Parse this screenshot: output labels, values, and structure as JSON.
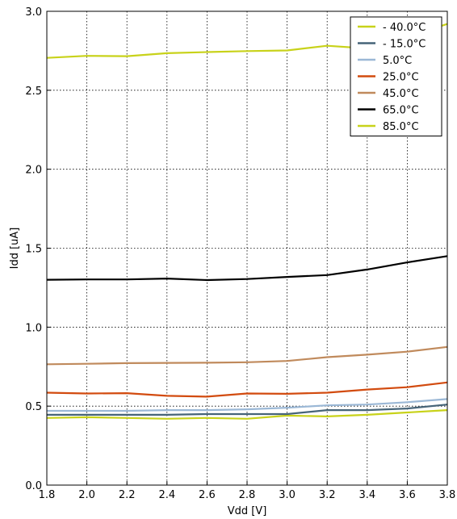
{
  "chart_data": {
    "type": "line",
    "title": "",
    "xlabel": "Vdd [V]",
    "ylabel": "Idd [uA]",
    "xlim": [
      1.8,
      3.8
    ],
    "ylim": [
      0.0,
      3.0
    ],
    "x_ticks": [
      "1.8",
      "2.0",
      "2.2",
      "2.4",
      "2.6",
      "2.8",
      "3.0",
      "3.2",
      "3.4",
      "3.6",
      "3.8"
    ],
    "y_ticks": [
      "0.0",
      "0.5",
      "1.0",
      "1.5",
      "2.0",
      "2.5",
      "3.0"
    ],
    "grid": true,
    "legend_position": "top-right",
    "x": [
      1.8,
      2.0,
      2.2,
      2.4,
      2.6,
      2.8,
      3.0,
      3.2,
      3.4,
      3.6,
      3.8
    ],
    "series": [
      {
        "name": "- 40.0°C",
        "color": "#c8d21a",
        "values": [
          0.425,
          0.43,
          0.425,
          0.42,
          0.425,
          0.42,
          0.44,
          0.435,
          0.445,
          0.46,
          0.475
        ]
      },
      {
        "name": "- 15.0°C",
        "color": "#466478",
        "values": [
          0.445,
          0.445,
          0.445,
          0.445,
          0.45,
          0.45,
          0.45,
          0.475,
          0.475,
          0.485,
          0.51
        ]
      },
      {
        "name": "5.0°C",
        "color": "#9bb8d6",
        "values": [
          0.47,
          0.47,
          0.47,
          0.475,
          0.475,
          0.48,
          0.49,
          0.505,
          0.51,
          0.525,
          0.545
        ]
      },
      {
        "name": "25.0°C",
        "color": "#d24b0f",
        "values": [
          0.585,
          0.58,
          0.582,
          0.565,
          0.56,
          0.58,
          0.578,
          0.585,
          0.605,
          0.62,
          0.65
        ]
      },
      {
        "name": "45.0°C",
        "color": "#c08a5c",
        "values": [
          0.765,
          0.768,
          0.772,
          0.774,
          0.775,
          0.778,
          0.786,
          0.81,
          0.826,
          0.845,
          0.875
        ]
      },
      {
        "name": "65.0°C",
        "color": "#000000",
        "values": [
          1.3,
          1.302,
          1.302,
          1.308,
          1.298,
          1.305,
          1.318,
          1.33,
          1.365,
          1.41,
          1.45
        ]
      },
      {
        "name": "85.0°C",
        "color": "#c8d21a",
        "values": [
          2.705,
          2.718,
          2.716,
          2.735,
          2.742,
          2.748,
          2.752,
          2.782,
          2.765,
          2.838,
          2.92
        ]
      }
    ]
  }
}
